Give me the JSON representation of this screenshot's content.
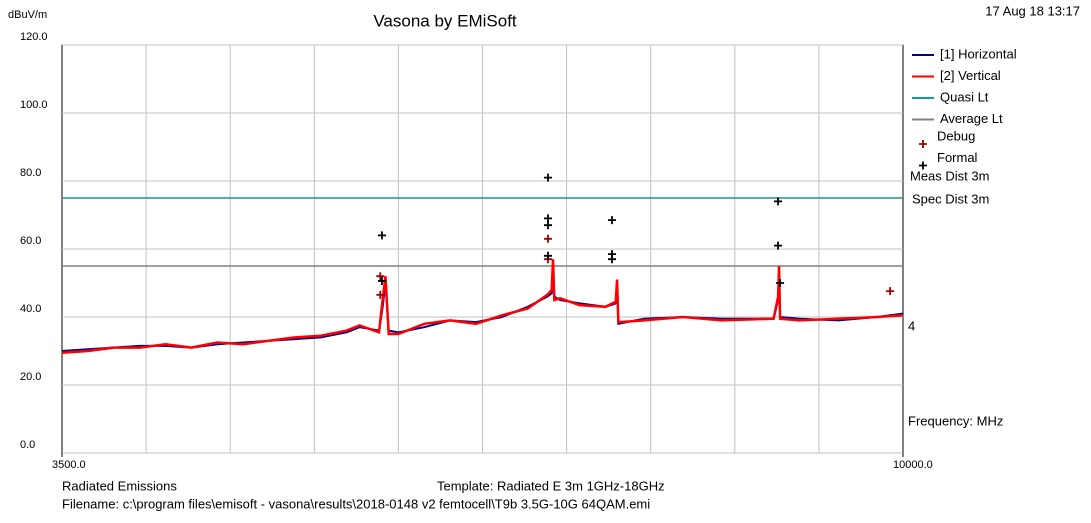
{
  "chart_data": {
    "type": "line",
    "title": "Vasona by EMiSoft",
    "y_label": "dBuV/m",
    "x_label": "Frequency: MHz",
    "timestamp": "17 Aug 18 13:17",
    "notes": [
      "Meas Dist 3m",
      "Spec Dist 3m"
    ],
    "end_marker": "4",
    "footer": {
      "left": "Radiated Emissions",
      "template": "Template: Radiated E 3m 1GHz-18GHz",
      "filename": "Filename: c:\\program files\\emisoft - vasona\\results\\2018-0148 v2  femtocell\\T9b 3.5G-10G 64QAM.emi"
    },
    "xlim": [
      3500,
      10000
    ],
    "xticks": [
      {
        "value": 3500,
        "label": "3500.0"
      },
      {
        "value": 10000,
        "label": "10000.0"
      }
    ],
    "ylim": [
      0,
      120
    ],
    "yticks": [
      {
        "value": 0,
        "label": "0.0"
      },
      {
        "value": 20,
        "label": "20.0"
      },
      {
        "value": 40,
        "label": "40.0"
      },
      {
        "value": 60,
        "label": "60.0"
      },
      {
        "value": 80,
        "label": "80.0"
      },
      {
        "value": 100,
        "label": "100.0"
      },
      {
        "value": 120,
        "label": "120.0"
      }
    ],
    "grid": true,
    "x": [
      3500,
      3700,
      3900,
      4100,
      4300,
      4500,
      4700,
      4900,
      5100,
      5300,
      5500,
      5700,
      5800,
      5950,
      5975,
      6000,
      6025,
      6100,
      6300,
      6500,
      6700,
      6900,
      7100,
      7250,
      7285,
      7295,
      7305,
      7350,
      7500,
      7700,
      7780,
      7790,
      7800,
      8000,
      8300,
      8600,
      9000,
      9035,
      9042,
      9050,
      9200,
      9500,
      9800,
      10000
    ],
    "series": [
      {
        "name": "[1] Horizontal",
        "color": "#00008b",
        "values": [
          30,
          30.5,
          31,
          31.5,
          31.5,
          31,
          32,
          32.5,
          33,
          33.5,
          34,
          35.5,
          37,
          36,
          42,
          50,
          36,
          35.5,
          37,
          39,
          38.5,
          40,
          43,
          46,
          47,
          55,
          46,
          45,
          44,
          43,
          44,
          50,
          38,
          39.5,
          40,
          39.5,
          39.5,
          45,
          54,
          40,
          39.5,
          39,
          40,
          41
        ]
      },
      {
        "name": "[2] Vertical",
        "color": "#ff0000",
        "values": [
          29.5,
          30,
          31,
          31,
          32,
          31,
          32.5,
          32,
          33,
          34,
          34.5,
          36,
          37.5,
          35.5,
          44,
          52,
          35,
          35,
          38,
          39,
          38,
          40.5,
          42.5,
          46.5,
          48,
          57,
          45,
          45.5,
          43.5,
          43,
          44.5,
          51,
          38.5,
          39,
          40,
          39,
          39.5,
          46,
          55,
          39.5,
          39,
          39.5,
          40,
          40.5
        ]
      }
    ],
    "limits": [
      {
        "name": "Quasi Lt",
        "color": "#159a9a",
        "value": 75
      },
      {
        "name": "Average Lt",
        "color": "#808080",
        "value": 55
      }
    ],
    "markers": [
      {
        "name": "Debug",
        "color": "#a00000",
        "x": [
          5960,
          5960,
          7256,
          7256,
          9900
        ],
        "values": [
          52,
          46.5,
          63,
          57,
          47.6
        ]
      },
      {
        "name": "Formal",
        "color": "#000000",
        "x": [
          5973,
          5973,
          7256,
          7256,
          7256,
          7256,
          7751,
          7751,
          7751,
          9034,
          9034,
          9050
        ],
        "values": [
          64,
          50.6,
          81,
          69,
          67,
          58,
          68.5,
          58.5,
          57,
          74,
          61,
          50
        ]
      }
    ]
  }
}
